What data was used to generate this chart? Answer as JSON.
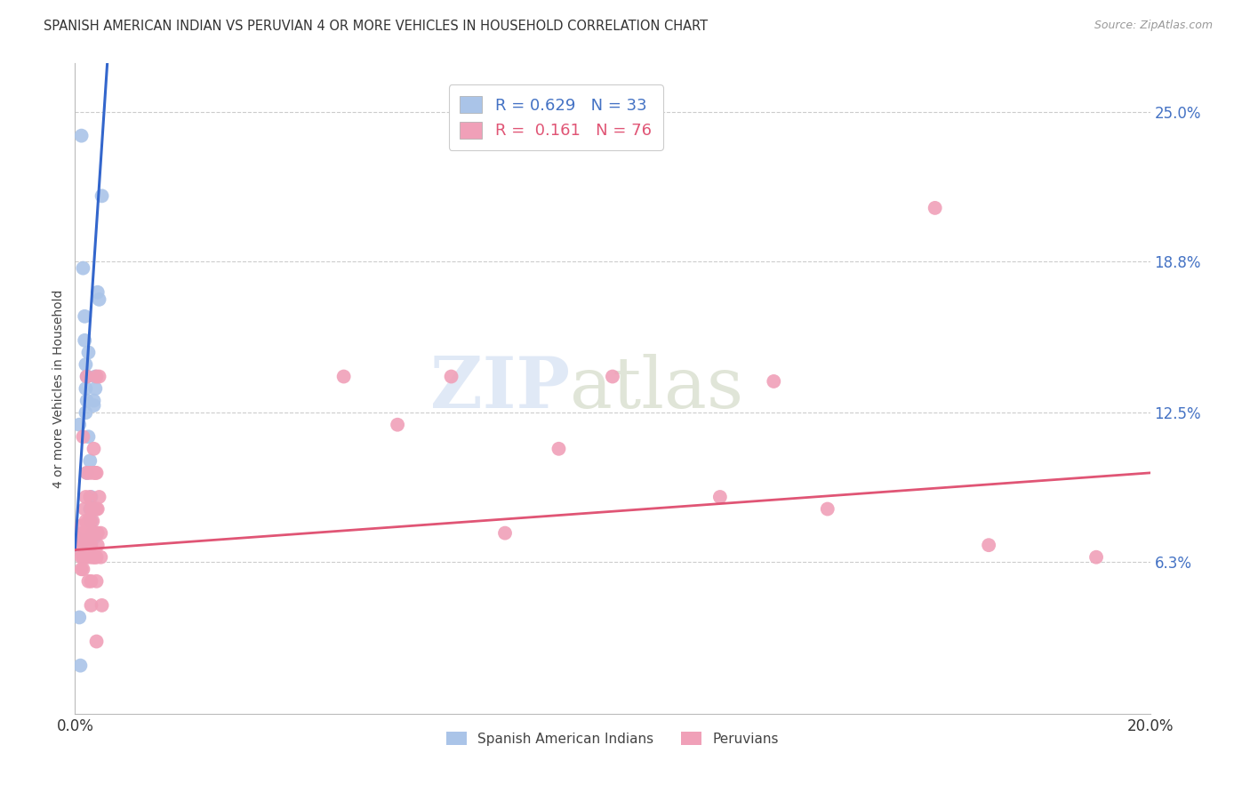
{
  "title": "SPANISH AMERICAN INDIAN VS PERUVIAN 4 OR MORE VEHICLES IN HOUSEHOLD CORRELATION CHART",
  "source": "Source: ZipAtlas.com",
  "ylabel": "4 or more Vehicles in Household",
  "xlim": [
    0.0,
    0.2
  ],
  "ylim": [
    0.0,
    0.27
  ],
  "yticks": [
    0.063,
    0.125,
    0.188,
    0.25
  ],
  "ytick_labels": [
    "6.3%",
    "12.5%",
    "18.8%",
    "25.0%"
  ],
  "xticks": [
    0.0,
    0.04,
    0.08,
    0.12,
    0.16,
    0.2
  ],
  "xtick_labels": [
    "0.0%",
    "",
    "",
    "",
    "",
    "20.0%"
  ],
  "blue_color": "#aac4e8",
  "pink_color": "#f0a0b8",
  "blue_line_color": "#3366cc",
  "pink_line_color": "#e05575",
  "blue_dots": [
    [
      0.0008,
      0.12
    ],
    [
      0.001,
      0.07
    ],
    [
      0.0015,
      0.185
    ],
    [
      0.0018,
      0.165
    ],
    [
      0.0018,
      0.155
    ],
    [
      0.002,
      0.145
    ],
    [
      0.002,
      0.135
    ],
    [
      0.002,
      0.125
    ],
    [
      0.0022,
      0.14
    ],
    [
      0.0022,
      0.13
    ],
    [
      0.0022,
      0.1
    ],
    [
      0.0025,
      0.15
    ],
    [
      0.0025,
      0.115
    ],
    [
      0.0028,
      0.105
    ],
    [
      0.0028,
      0.085
    ],
    [
      0.0028,
      0.073
    ],
    [
      0.003,
      0.09
    ],
    [
      0.003,
      0.08
    ],
    [
      0.003,
      0.073
    ],
    [
      0.0033,
      0.085
    ],
    [
      0.0033,
      0.075
    ],
    [
      0.0035,
      0.13
    ],
    [
      0.0035,
      0.128
    ],
    [
      0.0035,
      0.073
    ],
    [
      0.0038,
      0.14
    ],
    [
      0.0038,
      0.135
    ],
    [
      0.0042,
      0.175
    ],
    [
      0.0045,
      0.172
    ],
    [
      0.005,
      0.215
    ],
    [
      0.0012,
      0.24
    ],
    [
      0.0008,
      0.04
    ],
    [
      0.001,
      0.02
    ],
    [
      0.0005,
      0.073
    ]
  ],
  "pink_dots": [
    [
      0.0008,
      0.073
    ],
    [
      0.001,
      0.068
    ],
    [
      0.0012,
      0.078
    ],
    [
      0.0012,
      0.065
    ],
    [
      0.0012,
      0.06
    ],
    [
      0.0015,
      0.115
    ],
    [
      0.0015,
      0.075
    ],
    [
      0.0015,
      0.07
    ],
    [
      0.0015,
      0.065
    ],
    [
      0.0015,
      0.06
    ],
    [
      0.0018,
      0.085
    ],
    [
      0.0018,
      0.075
    ],
    [
      0.0018,
      0.07
    ],
    [
      0.0018,
      0.065
    ],
    [
      0.002,
      0.09
    ],
    [
      0.002,
      0.08
    ],
    [
      0.002,
      0.075
    ],
    [
      0.002,
      0.065
    ],
    [
      0.0022,
      0.14
    ],
    [
      0.0022,
      0.1
    ],
    [
      0.0022,
      0.075
    ],
    [
      0.0022,
      0.065
    ],
    [
      0.0025,
      0.08
    ],
    [
      0.0025,
      0.075
    ],
    [
      0.0025,
      0.07
    ],
    [
      0.0025,
      0.055
    ],
    [
      0.0028,
      0.1
    ],
    [
      0.0028,
      0.09
    ],
    [
      0.0028,
      0.08
    ],
    [
      0.0028,
      0.075
    ],
    [
      0.0028,
      0.065
    ],
    [
      0.003,
      0.085
    ],
    [
      0.003,
      0.075
    ],
    [
      0.003,
      0.07
    ],
    [
      0.003,
      0.055
    ],
    [
      0.003,
      0.045
    ],
    [
      0.0033,
      0.085
    ],
    [
      0.0033,
      0.08
    ],
    [
      0.0033,
      0.075
    ],
    [
      0.0033,
      0.065
    ],
    [
      0.0035,
      0.11
    ],
    [
      0.0035,
      0.1
    ],
    [
      0.0035,
      0.085
    ],
    [
      0.0035,
      0.075
    ],
    [
      0.0035,
      0.065
    ],
    [
      0.0038,
      0.1
    ],
    [
      0.0038,
      0.085
    ],
    [
      0.0038,
      0.075
    ],
    [
      0.0038,
      0.065
    ],
    [
      0.004,
      0.14
    ],
    [
      0.004,
      0.1
    ],
    [
      0.004,
      0.085
    ],
    [
      0.004,
      0.075
    ],
    [
      0.004,
      0.065
    ],
    [
      0.004,
      0.055
    ],
    [
      0.004,
      0.03
    ],
    [
      0.0042,
      0.085
    ],
    [
      0.0042,
      0.075
    ],
    [
      0.0042,
      0.07
    ],
    [
      0.0045,
      0.14
    ],
    [
      0.0045,
      0.09
    ],
    [
      0.0048,
      0.075
    ],
    [
      0.0048,
      0.065
    ],
    [
      0.005,
      0.045
    ],
    [
      0.05,
      0.14
    ],
    [
      0.07,
      0.14
    ],
    [
      0.1,
      0.14
    ],
    [
      0.13,
      0.138
    ],
    [
      0.09,
      0.11
    ],
    [
      0.06,
      0.12
    ],
    [
      0.12,
      0.09
    ],
    [
      0.14,
      0.085
    ],
    [
      0.08,
      0.075
    ],
    [
      0.16,
      0.21
    ],
    [
      0.17,
      0.07
    ],
    [
      0.19,
      0.065
    ]
  ],
  "blue_line": {
    "x0": 0.0,
    "x1": 0.006,
    "y0": 0.068,
    "y1": 0.27
  },
  "pink_line": {
    "x0": 0.0,
    "x1": 0.2,
    "y0": 0.068,
    "y1": 0.1
  },
  "legend1_R": "R = 0.629",
  "legend1_N": "N = 33",
  "legend2_R": "R =  0.161",
  "legend2_N": "N = 76",
  "watermark_zip": "ZIP",
  "watermark_atlas": "atlas"
}
